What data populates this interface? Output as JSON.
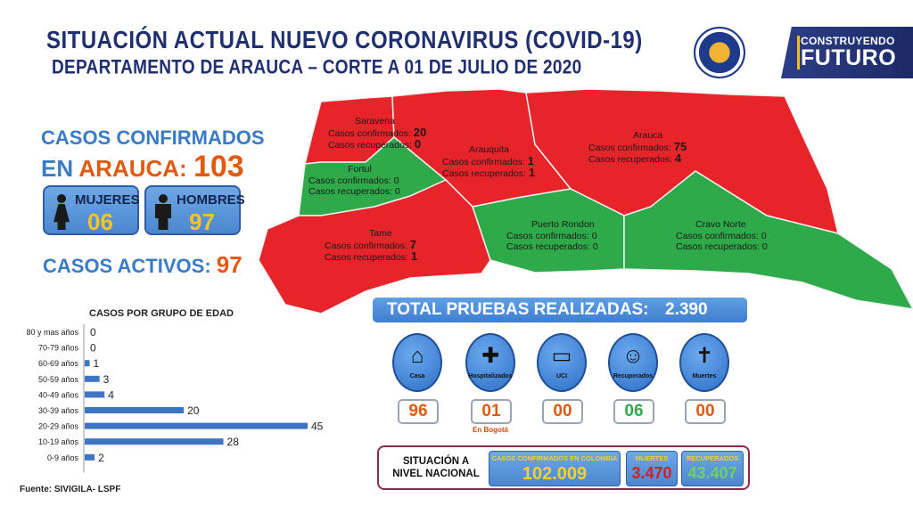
{
  "header": {
    "title": "SITUACIÓN ACTUAL NUEVO CORONAVIRUS (COVID-19)",
    "subtitle": "DEPARTAMENTO DE ARAUCA – CORTE A 01 DE JULIO DE 2020",
    "brand_line1": "CONSTRUYENDO",
    "brand_line2": "FUTURO"
  },
  "summary": {
    "confirmed_line1": "CASOS CONFIRMADOS",
    "confirmed_prefix": "EN ",
    "confirmed_place": "ARAUCA:",
    "confirmed_total": "103",
    "women_label": "MUJERES",
    "women_value": "06",
    "men_label": "HOMBRES",
    "men_value": "97",
    "active_label": "CASOS ACTIVOS:",
    "active_value": "97"
  },
  "map": {
    "colors": {
      "red": "#e8242b",
      "green": "#2eaa4a"
    },
    "municipalities": [
      {
        "name": "Saravena",
        "confirmed_label": "Casos confirmados:",
        "confirmed": "20",
        "recovered_label": "Casos recuperados:",
        "recovered": "0"
      },
      {
        "name": "Arauquita",
        "confirmed_label": "Casos confirmados:",
        "confirmed": "1",
        "recovered_label": "Casos recuperados:",
        "recovered": "1"
      },
      {
        "name": "Arauca",
        "confirmed_label": "Casos confirmados:",
        "confirmed": "75",
        "recovered_label": "Casos recuperados:",
        "recovered": "4"
      },
      {
        "name": "Fortul",
        "confirmed_label": "Casos confirmados:",
        "confirmed": "0",
        "recovered_label": "Casos recuperados:",
        "recovered": "0"
      },
      {
        "name": "Tame",
        "confirmed_label": "Casos confirmados:",
        "confirmed": "7",
        "recovered_label": "Casos recuperados:",
        "recovered": "1"
      },
      {
        "name": "Puerto Rondon",
        "confirmed_label": "Casos confirmados:",
        "confirmed": "0",
        "recovered_label": "Casos recuperados:",
        "recovered": "0"
      },
      {
        "name": "Cravo Norte",
        "confirmed_label": "Casos confirmados:",
        "confirmed": "0",
        "recovered_label": "Casos recuperados:",
        "recovered": "0"
      }
    ]
  },
  "age_chart": {
    "title": "CASOS POR GRUPO DE EDAD",
    "source": "Fuente: SIVIGILA- LSPF"
  },
  "chart_data": {
    "type": "bar",
    "orientation": "horizontal",
    "title": "CASOS POR GRUPO DE EDAD",
    "categories": [
      "80 y mas años",
      "70-79 años",
      "60-69 años",
      "50-59 años",
      "40-49 años",
      "30-39 años",
      "20-29 años",
      "10-19 años",
      "0-9 años"
    ],
    "values": [
      0,
      0,
      1,
      3,
      4,
      20,
      45,
      28,
      2
    ],
    "xlim": [
      0,
      45
    ],
    "grid": false,
    "color": "#3f74c4"
  },
  "tests": {
    "label": "TOTAL PRUEBAS REALIZADAS:",
    "value": "2.390"
  },
  "status": [
    {
      "label": "Casa",
      "icon": "house-icon",
      "value": "96",
      "color": "#e05a12"
    },
    {
      "label": "Hospitalizados",
      "icon": "hospital-icon",
      "value": "01",
      "color": "#e05a12",
      "note": "En Bogotá"
    },
    {
      "label": "UCI",
      "icon": "bed-icon",
      "value": "00",
      "color": "#e05a12"
    },
    {
      "label": "Recuperados",
      "icon": "smiley-icon",
      "value": "06",
      "color": "#2eaa4a"
    },
    {
      "label": "Muertes",
      "icon": "tombstone-icon",
      "value": "00",
      "color": "#e05a12"
    }
  ],
  "national": {
    "label_line1": "SITUACIÓN A",
    "label_line2": "NIVEL NACIONAL",
    "confirmed_label": "CASOS CONFIRMADOS EN COLOMBIA",
    "confirmed_value": "102.009",
    "deaths_label": "MUERTES",
    "deaths_value": "3.470",
    "recovered_label": "RECUPERADOS",
    "recovered_value": "43.407"
  }
}
